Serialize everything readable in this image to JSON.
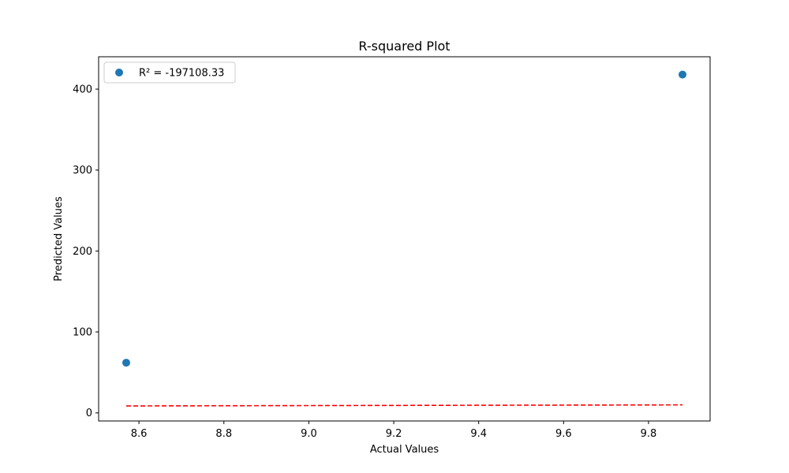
{
  "chart_data": {
    "type": "scatter",
    "title": "R-squared Plot",
    "xlabel": "Actual Values",
    "ylabel": "Predicted Values",
    "xlim": [
      8.505,
      9.945
    ],
    "ylim": [
      -10,
      440
    ],
    "x_ticks": [
      8.6,
      8.8,
      9.0,
      9.2,
      9.4,
      9.6,
      9.8
    ],
    "x_tick_labels": [
      "8.6",
      "8.8",
      "9.0",
      "9.2",
      "9.4",
      "9.6",
      "9.8"
    ],
    "y_ticks": [
      0,
      100,
      200,
      300,
      400
    ],
    "y_tick_labels": [
      "0",
      "100",
      "200",
      "300",
      "400"
    ],
    "grid": false,
    "legend_position": "top-left",
    "series": [
      {
        "name": "R² = -197108.33",
        "kind": "scatter",
        "color": "#1f77b4",
        "points": [
          {
            "x": 8.57,
            "y": 62
          },
          {
            "x": 9.88,
            "y": 418
          }
        ]
      }
    ],
    "reference_line": {
      "kind": "dashed-line",
      "color": "#ff0000",
      "points": [
        {
          "x": 8.57,
          "y": 8.57
        },
        {
          "x": 9.88,
          "y": 9.88
        }
      ]
    }
  }
}
